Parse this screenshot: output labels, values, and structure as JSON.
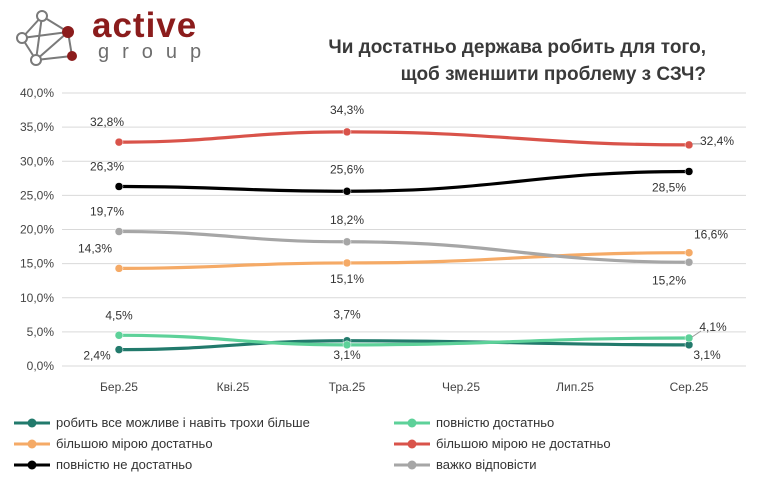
{
  "brand": {
    "name": "active",
    "sub": "group"
  },
  "chart_data": {
    "type": "line",
    "title_lines": [
      "Чи достатньо держава робить для того,",
      "щоб зменшити проблему з СЗЧ?"
    ],
    "categories": [
      "Бер.25",
      "Кві.25",
      "Тра.25",
      "Чер.25",
      "Лип.25",
      "Сер.25"
    ],
    "yticks": [
      "0,0%",
      "5,0%",
      "10,0%",
      "15,0%",
      "20,0%",
      "25,0%",
      "30,0%",
      "35,0%",
      "40,0%"
    ],
    "ylim": [
      0,
      40
    ],
    "series": [
      {
        "name": "робить все можливе і навіть  трохи більше",
        "color": "#227a6c",
        "points": [
          [
            0,
            2.4
          ],
          [
            2,
            3.7
          ],
          [
            5,
            3.1
          ]
        ],
        "labels": [
          "2,4%",
          "3,7%",
          "3,1%"
        ]
      },
      {
        "name": "повністю достатньо",
        "color": "#5dd199",
        "points": [
          [
            0,
            4.5
          ],
          [
            2,
            3.1
          ],
          [
            5,
            4.1
          ]
        ],
        "labels": [
          "4,5%",
          "3,1%",
          "4,1%"
        ]
      },
      {
        "name": "більшою мірою достатньо",
        "color": "#f5aa66",
        "points": [
          [
            0,
            14.3
          ],
          [
            2,
            15.1
          ],
          [
            5,
            16.6
          ]
        ],
        "labels": [
          "14,3%",
          "15,1%",
          "16,6%"
        ]
      },
      {
        "name": "більшою мірою не достатньо",
        "color": "#d9534a",
        "points": [
          [
            0,
            32.8
          ],
          [
            2,
            34.3
          ],
          [
            5,
            32.4
          ]
        ],
        "labels": [
          "32,8%",
          "34,3%",
          "32,4%"
        ]
      },
      {
        "name": "повністю не достатньо",
        "color": "#000000",
        "points": [
          [
            0,
            26.3
          ],
          [
            2,
            25.6
          ],
          [
            5,
            28.5
          ]
        ],
        "labels": [
          "26,3%",
          "25,6%",
          "28,5%"
        ]
      },
      {
        "name": "важко відповісти",
        "color": "#a6a6a6",
        "points": [
          [
            0,
            19.7
          ],
          [
            2,
            18.2
          ],
          [
            5,
            15.2
          ]
        ],
        "labels": [
          "19,7%",
          "18,2%",
          "15,2%"
        ]
      }
    ]
  }
}
